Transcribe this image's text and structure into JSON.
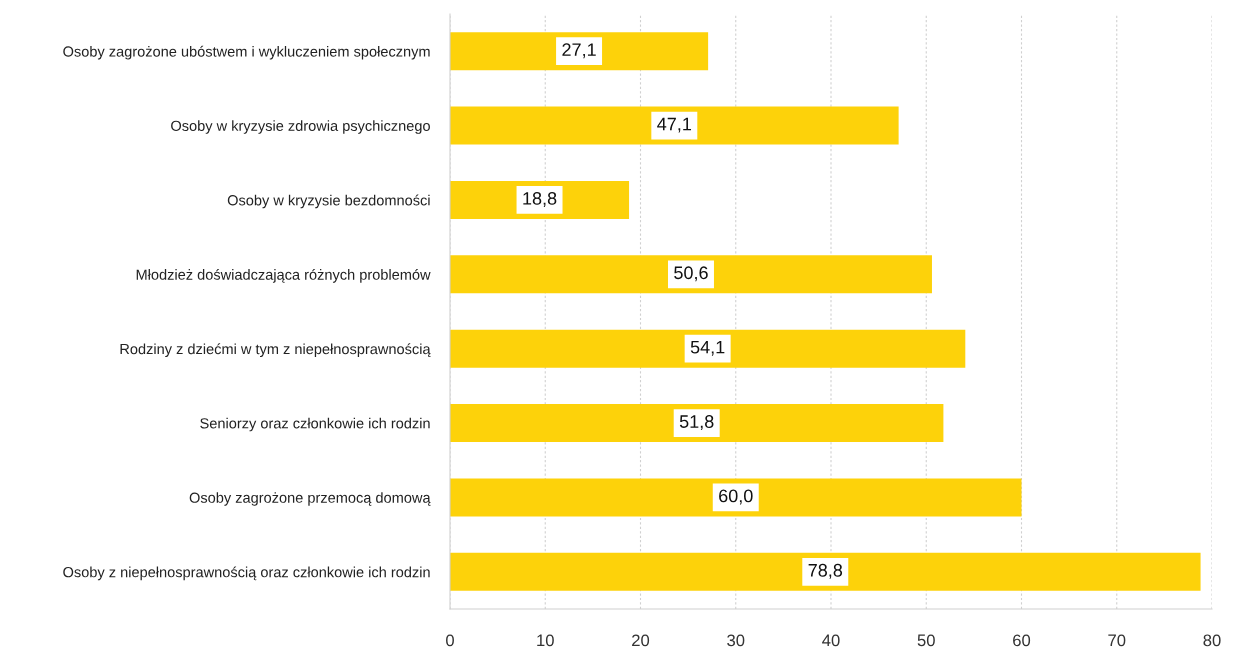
{
  "chart_data": {
    "type": "bar",
    "orientation": "horizontal",
    "categories": [
      "Osoby zagrożone ubóstwem i wykluczeniem społecznym",
      "Osoby w kryzysie zdrowia psychicznego",
      "Osoby w kryzysie bezdomności",
      "Młodzież doświadczająca różnych problemów",
      "Rodziny z dziećmi w tym z niepełnosprawnością",
      "Seniorzy oraz członkowie ich rodzin",
      "Osoby zagrożone przemocą domową",
      "Osoby z niepełnosprawnością oraz członkowie ich rodzin"
    ],
    "values": [
      27.1,
      47.1,
      18.8,
      50.6,
      54.1,
      51.8,
      60.0,
      78.8
    ],
    "value_labels": [
      "27,1",
      "47,1",
      "18,8",
      "50,6",
      "54,1",
      "51,8",
      "60,0",
      "78,8"
    ],
    "color": "#fdd20a",
    "xlim": [
      0,
      80
    ],
    "xticks": [
      0,
      10,
      20,
      30,
      40,
      50,
      60,
      70,
      80
    ],
    "grid": "x"
  }
}
